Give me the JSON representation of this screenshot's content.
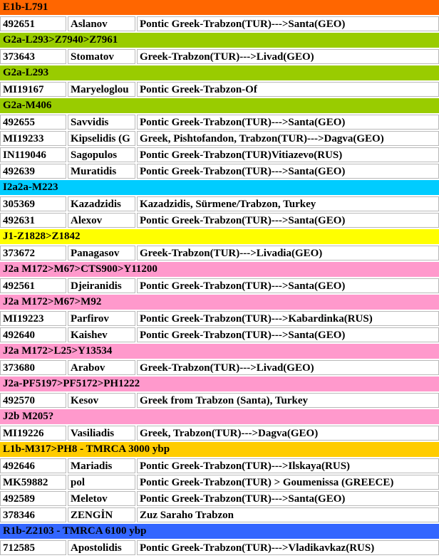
{
  "colors": {
    "orange": "#ff6600",
    "green": "#99cc00",
    "cyan": "#00ccff",
    "yellow": "#ffff00",
    "pink": "#ff99cc",
    "amber": "#ffcc00",
    "blue": "#3366ff"
  },
  "groups": [
    {
      "label": "E1b-L791",
      "color": "orange",
      "rows": [
        {
          "id": "492651",
          "name": "Aslanov",
          "origin": "Pontic Greek-Trabzon(TUR)--->Santa(GEO)"
        }
      ]
    },
    {
      "label": "G2a-L293>Z7940>Z7961",
      "color": "green",
      "rows": [
        {
          "id": "373643",
          "name": "Stomatov",
          "origin": "Greek-Trabzon(TUR)--->Livad(GEO)"
        }
      ]
    },
    {
      "label": "G2a-L293",
      "color": "green",
      "rows": [
        {
          "id": "MI19167",
          "name": "Maryeloglou",
          "origin": "Pontic Greek-Trabzon-Of"
        }
      ]
    },
    {
      "label": "G2a-M406",
      "color": "green",
      "rows": [
        {
          "id": "492655",
          "name": "Savvidis",
          "origin": "Pontic Greek-Trabzon(TUR)--->Santa(GEO)"
        },
        {
          "id": "MI19233",
          "name": "Kipselidis (G",
          "origin": "Greek, Pishtofandon, Trabzon(TUR)--->Dagva(GEO)"
        },
        {
          "id": "IN119046",
          "name": "Sagopulos",
          "origin": "Pontic Greek-Trabzon(TUR)Vitiazevo(RUS)"
        },
        {
          "id": "492639",
          "name": "Muratidis",
          "origin": "Pontic Greek-Trabzon(TUR)--->Santa(GEO)"
        }
      ]
    },
    {
      "label": "I2a2a-M223",
      "color": "cyan",
      "rows": [
        {
          "id": "305369",
          "name": "Kazadzidis",
          "origin": "Kazadzidis, Sürmene/Trabzon, Turkey"
        },
        {
          "id": "492631",
          "name": "Alexov",
          "origin": "Pontic Greek-Trabzon(TUR)--->Santa(GEO)"
        }
      ]
    },
    {
      "label": "J1-Z1828>Z1842",
      "color": "yellow",
      "rows": [
        {
          "id": "373672",
          "name": "Panagasov",
          "origin": "Greek-Trabzon(TUR)--->Livadia(GEO)"
        }
      ]
    },
    {
      "label": "J2a M172>M67>CTS900>Y11200",
      "color": "pink",
      "rows": [
        {
          "id": "492561",
          "name": "Djeiranidis",
          "origin": "Pontic Greek-Trabzon(TUR)--->Santa(GEO)"
        }
      ]
    },
    {
      "label": "J2a M172>M67>M92",
      "color": "pink",
      "rows": [
        {
          "id": "MI19223",
          "name": "Parfirov",
          "origin": "Pontic Greek-Trabzon(TUR)--->Kabardinka(RUS)"
        },
        {
          "id": "492640",
          "name": "Kaishev",
          "origin": "Pontic Greek-Trabzon(TUR)--->Santa(GEO)"
        }
      ]
    },
    {
      "label": "J2a M172>L25>Y13534",
      "color": "pink",
      "rows": [
        {
          "id": "373680",
          "name": "Arabov",
          "origin": "Greek-Trabzon(TUR)--->Livad(GEO)"
        }
      ]
    },
    {
      "label": "J2a-PF5197>PF5172>PH1222",
      "color": "pink",
      "rows": [
        {
          "id": "492570",
          "name": "Kesov",
          "origin": "Greek from Trabzon (Santa), Turkey"
        }
      ]
    },
    {
      "label": "J2b M205?",
      "color": "pink",
      "rows": [
        {
          "id": "MI19226",
          "name": "Vasiliadis",
          "origin": "Greek, Trabzon(TUR)--->Dagva(GEO)"
        }
      ]
    },
    {
      "label": "L1b-M317>PH8 - TMRCA 3000 ybp",
      "color": "amber",
      "rows": [
        {
          "id": "492646",
          "name": "Mariadis",
          "origin": "Pontic Greek-Trabzon(TUR)--->Ilskaya(RUS)"
        },
        {
          "id": "MK59882",
          "name": "pol",
          "origin": "Pontic Greek-Trabzon(TUR) > Goumenissa (GREECE)"
        },
        {
          "id": "492589",
          "name": "Meletov",
          "origin": "Pontic Greek-Trabzon(TUR)--->Santa(GEO)"
        },
        {
          "id": "378346",
          "name": "ZENGİN",
          "origin": "Zuz Saraho Trabzon"
        }
      ]
    },
    {
      "label": "R1b-Z2103 - TMRCA 6100 ybp",
      "color": "blue",
      "rows": [
        {
          "id": "712585",
          "name": "Apostolidis",
          "origin": "Pontic Greek-Trabzon(TUR)--->Vladikavkaz(RUS)"
        }
      ]
    }
  ]
}
